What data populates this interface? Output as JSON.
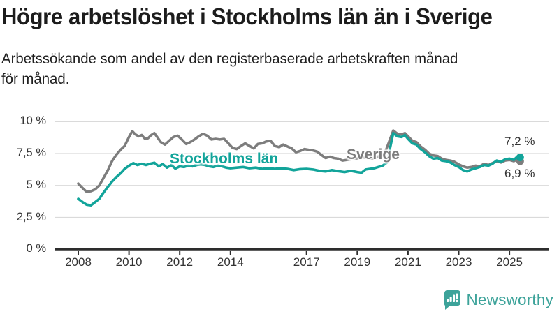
{
  "header": {
    "title": "Högre arbetslöshet i Stockholms län än i Sverige",
    "subtitle_line1": "Arbetssökande som andel av den registerbaserade arbetskraften månad",
    "subtitle_line2": "för månad."
  },
  "footer": {
    "brand": "Newsworthy"
  },
  "colors": {
    "stockholm_line": "#12a49a",
    "sverige_line": "#7d7d7d",
    "gridline": "#dadada",
    "axis": "#2d2d2d",
    "text": "#333333",
    "brand_teal": "#3da39a"
  },
  "chart_data": {
    "type": "line",
    "title": "Högre arbetslöshet i Stockholms län än i Sverige",
    "subtitle": "Arbetssökande som andel av den registerbaserade arbetskraften månad för månad.",
    "x_unit": "year (monthly observations)",
    "ylim": [
      0,
      10.7
    ],
    "xlim": [
      2007.6,
      2026.3
    ],
    "grid": "horizontal",
    "legend_position": "inline-labels",
    "yticks": [
      {
        "value": 0,
        "label": "0 %"
      },
      {
        "value": 2.5,
        "label": "2,5 %"
      },
      {
        "value": 5,
        "label": "5 %"
      },
      {
        "value": 7.5,
        "label": "7,5 %"
      },
      {
        "value": 10,
        "label": "10 %"
      }
    ],
    "xticks": [
      {
        "value": 2008,
        "label": "2008"
      },
      {
        "value": 2010,
        "label": "2010"
      },
      {
        "value": 2012,
        "label": "2012"
      },
      {
        "value": 2014,
        "label": "2014"
      },
      {
        "value": 2017,
        "label": "2017"
      },
      {
        "value": 2019,
        "label": "2019"
      },
      {
        "value": 2021,
        "label": "2021"
      },
      {
        "value": 2023,
        "label": "2023"
      },
      {
        "value": 2025,
        "label": "2025"
      }
    ],
    "series": [
      {
        "name": "Sverige",
        "color": "#7d7d7d",
        "end_value_label": "6,9 %",
        "points": [
          [
            2008.0,
            5.15
          ],
          [
            2008.17,
            4.8
          ],
          [
            2008.33,
            4.5
          ],
          [
            2008.5,
            4.55
          ],
          [
            2008.67,
            4.7
          ],
          [
            2008.83,
            5.0
          ],
          [
            2009.0,
            5.6
          ],
          [
            2009.17,
            6.2
          ],
          [
            2009.33,
            6.9
          ],
          [
            2009.5,
            7.4
          ],
          [
            2009.67,
            7.8
          ],
          [
            2009.83,
            8.1
          ],
          [
            2010.0,
            8.8
          ],
          [
            2010.13,
            9.25
          ],
          [
            2010.25,
            9.0
          ],
          [
            2010.38,
            8.85
          ],
          [
            2010.5,
            8.95
          ],
          [
            2010.63,
            8.65
          ],
          [
            2010.75,
            8.7
          ],
          [
            2010.88,
            8.95
          ],
          [
            2011.0,
            9.1
          ],
          [
            2011.13,
            8.75
          ],
          [
            2011.25,
            8.4
          ],
          [
            2011.42,
            8.2
          ],
          [
            2011.58,
            8.5
          ],
          [
            2011.75,
            8.8
          ],
          [
            2011.92,
            8.9
          ],
          [
            2012.08,
            8.6
          ],
          [
            2012.25,
            8.25
          ],
          [
            2012.42,
            8.4
          ],
          [
            2012.58,
            8.6
          ],
          [
            2012.75,
            8.85
          ],
          [
            2012.92,
            9.05
          ],
          [
            2013.08,
            8.9
          ],
          [
            2013.25,
            8.6
          ],
          [
            2013.42,
            8.65
          ],
          [
            2013.58,
            8.6
          ],
          [
            2013.75,
            8.65
          ],
          [
            2013.92,
            8.3
          ],
          [
            2014.08,
            7.95
          ],
          [
            2014.25,
            7.85
          ],
          [
            2014.42,
            8.1
          ],
          [
            2014.58,
            8.3
          ],
          [
            2014.75,
            8.1
          ],
          [
            2014.92,
            7.9
          ],
          [
            2015.08,
            8.25
          ],
          [
            2015.25,
            8.3
          ],
          [
            2015.42,
            8.45
          ],
          [
            2015.58,
            8.5
          ],
          [
            2015.75,
            8.1
          ],
          [
            2015.92,
            8.0
          ],
          [
            2016.08,
            8.2
          ],
          [
            2016.25,
            8.05
          ],
          [
            2016.42,
            7.9
          ],
          [
            2016.58,
            7.6
          ],
          [
            2016.75,
            7.7
          ],
          [
            2016.92,
            7.85
          ],
          [
            2017.08,
            7.8
          ],
          [
            2017.25,
            7.75
          ],
          [
            2017.42,
            7.65
          ],
          [
            2017.58,
            7.4
          ],
          [
            2017.75,
            7.15
          ],
          [
            2017.92,
            7.25
          ],
          [
            2018.08,
            7.15
          ],
          [
            2018.25,
            7.1
          ],
          [
            2018.42,
            6.95
          ],
          [
            2018.58,
            7.0
          ],
          [
            2018.75,
            7.05
          ],
          [
            2018.92,
            7.1
          ],
          [
            2019.08,
            7.15
          ],
          [
            2019.25,
            7.2
          ],
          [
            2019.42,
            7.15
          ],
          [
            2019.58,
            7.1
          ],
          [
            2019.75,
            7.2
          ],
          [
            2019.92,
            7.35
          ],
          [
            2020.08,
            7.5
          ],
          [
            2020.25,
            8.4
          ],
          [
            2020.42,
            9.3
          ],
          [
            2020.58,
            9.05
          ],
          [
            2020.75,
            9.0
          ],
          [
            2020.88,
            9.1
          ],
          [
            2021.0,
            8.85
          ],
          [
            2021.17,
            8.5
          ],
          [
            2021.33,
            8.4
          ],
          [
            2021.5,
            8.05
          ],
          [
            2021.67,
            7.8
          ],
          [
            2021.83,
            7.5
          ],
          [
            2022.0,
            7.35
          ],
          [
            2022.17,
            7.3
          ],
          [
            2022.33,
            7.1
          ],
          [
            2022.5,
            7.0
          ],
          [
            2022.67,
            6.95
          ],
          [
            2022.83,
            6.85
          ],
          [
            2023.0,
            6.65
          ],
          [
            2023.17,
            6.5
          ],
          [
            2023.33,
            6.4
          ],
          [
            2023.5,
            6.45
          ],
          [
            2023.67,
            6.55
          ],
          [
            2023.83,
            6.5
          ],
          [
            2024.0,
            6.7
          ],
          [
            2024.17,
            6.6
          ],
          [
            2024.33,
            6.75
          ],
          [
            2024.5,
            6.9
          ],
          [
            2024.67,
            6.8
          ],
          [
            2024.83,
            6.95
          ],
          [
            2025.0,
            7.0
          ],
          [
            2025.17,
            6.9
          ],
          [
            2025.33,
            7.05
          ],
          [
            2025.42,
            6.9
          ]
        ]
      },
      {
        "name": "Stockholms län",
        "color": "#12a49a",
        "end_value_label": "7,2 %",
        "points": [
          [
            2008.0,
            3.95
          ],
          [
            2008.17,
            3.7
          ],
          [
            2008.33,
            3.5
          ],
          [
            2008.5,
            3.45
          ],
          [
            2008.67,
            3.7
          ],
          [
            2008.83,
            3.95
          ],
          [
            2009.0,
            4.45
          ],
          [
            2009.17,
            4.9
          ],
          [
            2009.33,
            5.3
          ],
          [
            2009.5,
            5.65
          ],
          [
            2009.67,
            5.95
          ],
          [
            2009.83,
            6.3
          ],
          [
            2010.0,
            6.55
          ],
          [
            2010.17,
            6.75
          ],
          [
            2010.33,
            6.6
          ],
          [
            2010.5,
            6.7
          ],
          [
            2010.67,
            6.6
          ],
          [
            2010.83,
            6.7
          ],
          [
            2011.0,
            6.78
          ],
          [
            2011.17,
            6.5
          ],
          [
            2011.33,
            6.68
          ],
          [
            2011.5,
            6.4
          ],
          [
            2011.67,
            6.6
          ],
          [
            2011.83,
            6.32
          ],
          [
            2012.0,
            6.5
          ],
          [
            2012.17,
            6.45
          ],
          [
            2012.33,
            6.55
          ],
          [
            2012.5,
            6.5
          ],
          [
            2012.67,
            6.6
          ],
          [
            2012.83,
            6.65
          ],
          [
            2013.0,
            6.6
          ],
          [
            2013.17,
            6.5
          ],
          [
            2013.33,
            6.45
          ],
          [
            2013.5,
            6.55
          ],
          [
            2013.67,
            6.5
          ],
          [
            2013.83,
            6.4
          ],
          [
            2014.0,
            6.35
          ],
          [
            2014.25,
            6.4
          ],
          [
            2014.5,
            6.45
          ],
          [
            2014.75,
            6.35
          ],
          [
            2015.0,
            6.4
          ],
          [
            2015.25,
            6.3
          ],
          [
            2015.5,
            6.35
          ],
          [
            2015.75,
            6.3
          ],
          [
            2016.0,
            6.35
          ],
          [
            2016.25,
            6.3
          ],
          [
            2016.5,
            6.2
          ],
          [
            2016.75,
            6.28
          ],
          [
            2017.0,
            6.3
          ],
          [
            2017.25,
            6.25
          ],
          [
            2017.5,
            6.15
          ],
          [
            2017.75,
            6.1
          ],
          [
            2018.0,
            6.2
          ],
          [
            2018.25,
            6.12
          ],
          [
            2018.5,
            6.05
          ],
          [
            2018.75,
            6.15
          ],
          [
            2019.0,
            6.05
          ],
          [
            2019.17,
            6.0
          ],
          [
            2019.33,
            6.25
          ],
          [
            2019.5,
            6.3
          ],
          [
            2019.67,
            6.35
          ],
          [
            2019.83,
            6.45
          ],
          [
            2020.0,
            6.55
          ],
          [
            2020.17,
            6.8
          ],
          [
            2020.42,
            9.1
          ],
          [
            2020.58,
            8.85
          ],
          [
            2020.75,
            8.8
          ],
          [
            2020.88,
            8.95
          ],
          [
            2021.0,
            8.65
          ],
          [
            2021.17,
            8.3
          ],
          [
            2021.33,
            8.2
          ],
          [
            2021.5,
            7.85
          ],
          [
            2021.67,
            7.6
          ],
          [
            2021.83,
            7.3
          ],
          [
            2022.0,
            7.1
          ],
          [
            2022.17,
            7.15
          ],
          [
            2022.33,
            6.95
          ],
          [
            2022.5,
            6.9
          ],
          [
            2022.67,
            6.8
          ],
          [
            2022.83,
            6.6
          ],
          [
            2023.0,
            6.45
          ],
          [
            2023.17,
            6.2
          ],
          [
            2023.33,
            6.1
          ],
          [
            2023.5,
            6.25
          ],
          [
            2023.67,
            6.35
          ],
          [
            2023.83,
            6.45
          ],
          [
            2024.0,
            6.6
          ],
          [
            2024.17,
            6.55
          ],
          [
            2024.33,
            6.7
          ],
          [
            2024.5,
            6.95
          ],
          [
            2024.67,
            6.85
          ],
          [
            2024.83,
            7.05
          ],
          [
            2025.0,
            7.1
          ],
          [
            2025.17,
            7.0
          ],
          [
            2025.33,
            7.3
          ],
          [
            2025.42,
            7.2
          ]
        ]
      }
    ],
    "end_labels": [
      {
        "series": "Stockholms län",
        "text": "7,2 %"
      },
      {
        "series": "Sverige",
        "text": "6,9 %"
      }
    ]
  }
}
